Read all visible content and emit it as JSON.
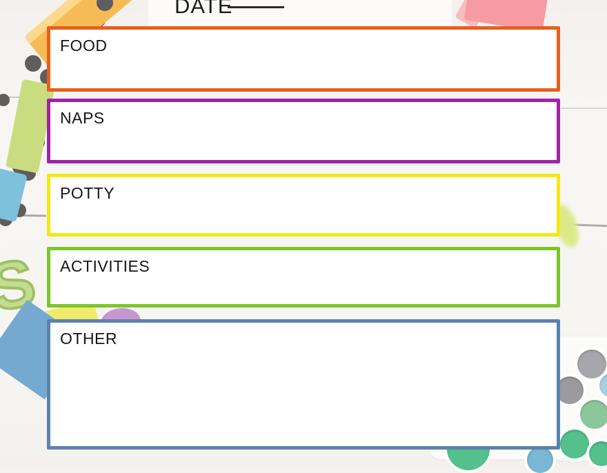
{
  "header": {
    "date_label": "DATE"
  },
  "sections": [
    {
      "key": "food",
      "label": "FOOD",
      "border_color": "#e7601d"
    },
    {
      "key": "naps",
      "label": "NAPS",
      "border_color": "#a122a8"
    },
    {
      "key": "potty",
      "label": "POTTY",
      "border_color": "#f5e714"
    },
    {
      "key": "activities",
      "label": "ACTIVITIES",
      "border_color": "#7cc52c"
    },
    {
      "key": "other",
      "label": "OTHER",
      "border_color": "#5b82ad"
    }
  ],
  "background": {
    "surface_color": "#f7f5f2",
    "plank_line_color": "#8a8681",
    "toys": {
      "train_block_yellow": "#f7bb55",
      "train_block_yellow_light": "#fbd98e",
      "train_car_green": "#c9dd80",
      "train_car_blue": "#7fc0da",
      "wheel_gray": "#5f5d5e",
      "foam_letter": "S",
      "foam_letter_fill": "#c3dc92",
      "paper_blue": "#76a9cf",
      "paper_yellow": "#f2ea6a",
      "foam_purple": "#c795d0",
      "block_pink": "#f59ba1",
      "block_pink_light": "#f8bcbf",
      "smear_green": "#dce98b"
    },
    "paint_palette": {
      "gray": "#a7a7ab",
      "gray2": "#9b9b9f",
      "light_blue": "#a8cfe0",
      "mint": "#8cc79c",
      "green": "#54c08c",
      "blue": "#79b7d4"
    }
  }
}
